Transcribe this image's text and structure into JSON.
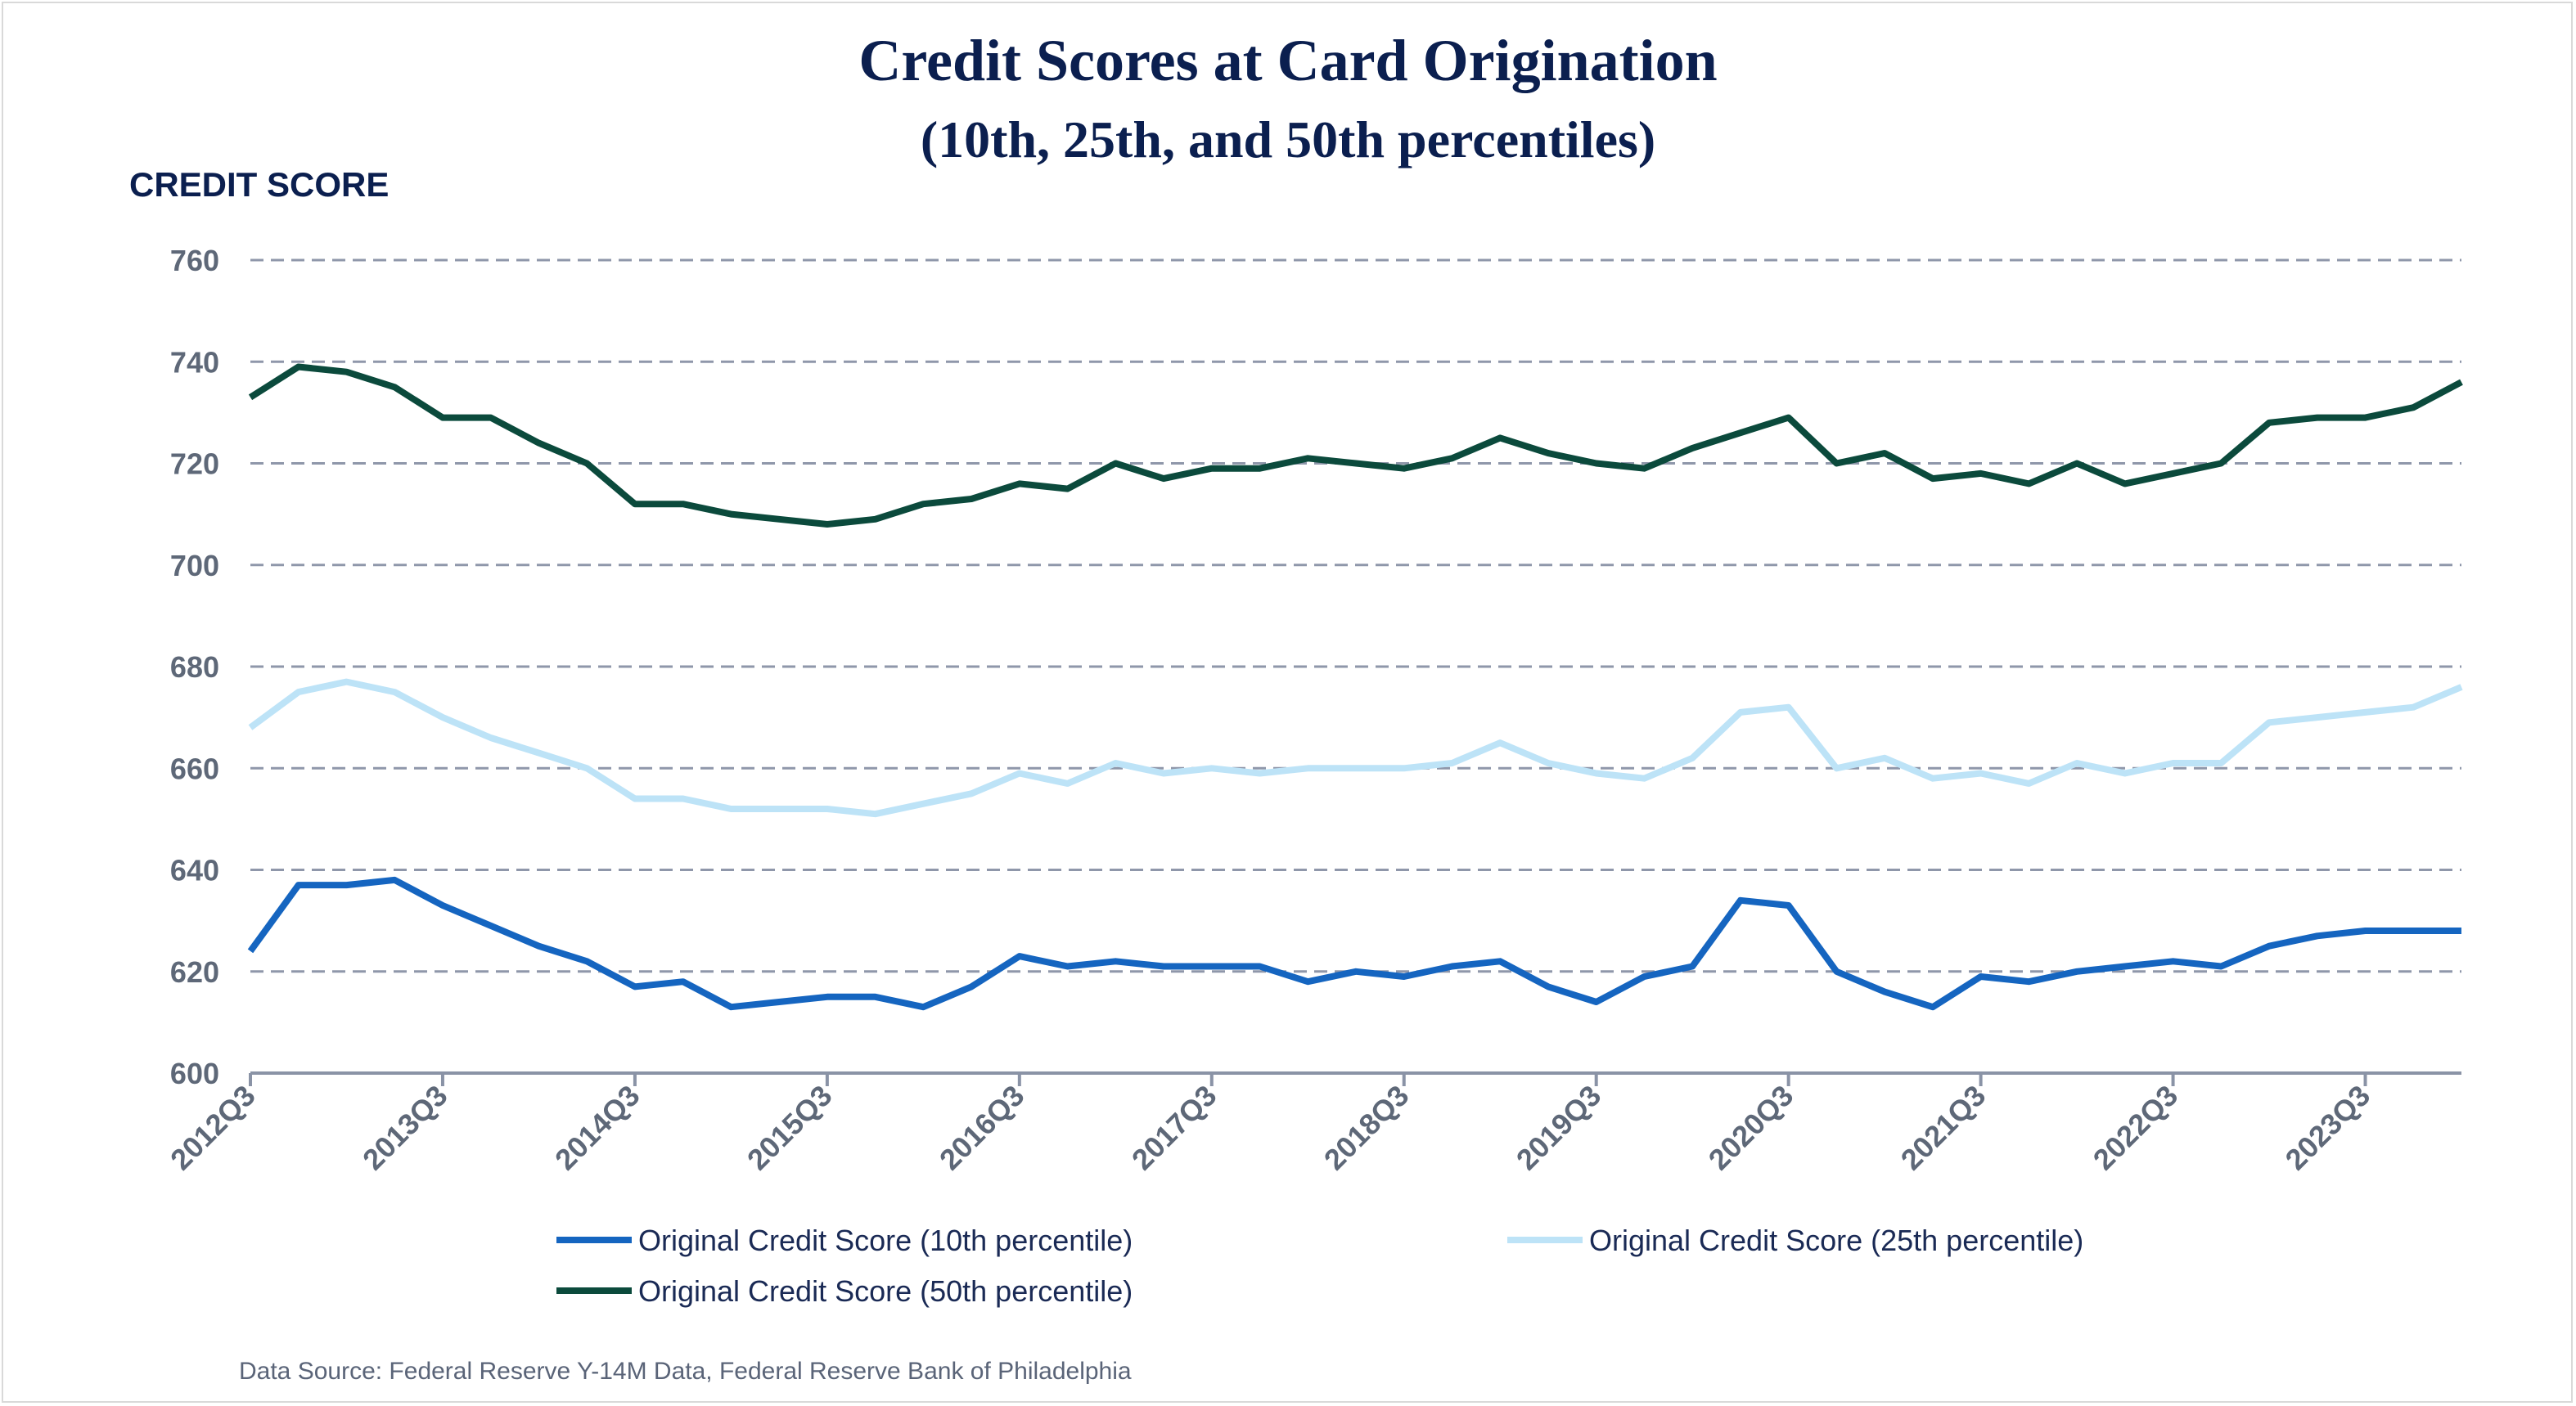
{
  "chart_data": {
    "type": "line",
    "title": "Credit Scores at Card Origination",
    "subtitle": "(10th, 25th, and 50th percentiles)",
    "ylabel": "CREDIT SCORE",
    "xlabel": "",
    "ylim": [
      600,
      760
    ],
    "yticks": [
      "760",
      "740",
      "720",
      "700",
      "680",
      "660",
      "640",
      "620",
      "600"
    ],
    "ytick_values": [
      760,
      740,
      720,
      700,
      680,
      660,
      640,
      620,
      600
    ],
    "x_tick_labels": [
      "2012Q3",
      "2013Q3",
      "2014Q3",
      "2015Q3",
      "2016Q3",
      "2017Q3",
      "2018Q3",
      "2019Q3",
      "2020Q3",
      "2021Q3",
      "2022Q3",
      "2023Q3"
    ],
    "x": [
      "2012Q3",
      "2012Q4",
      "2013Q1",
      "2013Q2",
      "2013Q3",
      "2013Q4",
      "2014Q1",
      "2014Q2",
      "2014Q3",
      "2014Q4",
      "2015Q1",
      "2015Q2",
      "2015Q3",
      "2015Q4",
      "2016Q1",
      "2016Q2",
      "2016Q3",
      "2016Q4",
      "2017Q1",
      "2017Q2",
      "2017Q3",
      "2017Q4",
      "2018Q1",
      "2018Q2",
      "2018Q3",
      "2018Q4",
      "2019Q1",
      "2019Q2",
      "2019Q3",
      "2019Q4",
      "2020Q1",
      "2020Q2",
      "2020Q3",
      "2020Q4",
      "2021Q1",
      "2021Q2",
      "2021Q3",
      "2021Q4",
      "2022Q1",
      "2022Q2",
      "2022Q3",
      "2022Q4",
      "2023Q1",
      "2023Q2",
      "2023Q3",
      "2023Q4",
      "2024Q1"
    ],
    "grid": true,
    "grid_style": "dashed horizontal",
    "legend_position": "bottom",
    "series": [
      {
        "name": "Original Credit Score (10th percentile)",
        "color": "#1565c0",
        "values": [
          624,
          637,
          637,
          638,
          633,
          629,
          625,
          622,
          617,
          618,
          613,
          614,
          615,
          615,
          613,
          617,
          623,
          621,
          622,
          621,
          621,
          621,
          618,
          620,
          619,
          621,
          622,
          617,
          614,
          619,
          621,
          634,
          633,
          620,
          616,
          613,
          619,
          618,
          620,
          621,
          622,
          621,
          625,
          627,
          628,
          628,
          628
        ]
      },
      {
        "name": "Original Credit Score (25th percentile)",
        "color": "#bde3f7",
        "values": [
          668,
          675,
          677,
          675,
          670,
          666,
          663,
          660,
          654,
          654,
          652,
          652,
          652,
          651,
          653,
          655,
          659,
          657,
          661,
          659,
          660,
          659,
          660,
          660,
          660,
          661,
          665,
          661,
          659,
          658,
          662,
          671,
          672,
          660,
          662,
          658,
          659,
          657,
          661,
          659,
          661,
          661,
          669,
          670,
          671,
          672,
          676
        ]
      },
      {
        "name": "Original Credit Score (50th percentile)",
        "color": "#0b4a3c",
        "values": [
          733,
          739,
          738,
          735,
          729,
          729,
          724,
          720,
          712,
          712,
          710,
          709,
          708,
          709,
          712,
          713,
          716,
          715,
          720,
          717,
          719,
          719,
          721,
          720,
          719,
          721,
          725,
          722,
          720,
          719,
          723,
          726,
          729,
          720,
          722,
          717,
          718,
          716,
          720,
          716,
          718,
          720,
          728,
          729,
          729,
          731,
          736
        ]
      }
    ]
  },
  "source_note": "Data Source: Federal Reserve Y-14M Data, Federal Reserve Bank of Philadelphia"
}
